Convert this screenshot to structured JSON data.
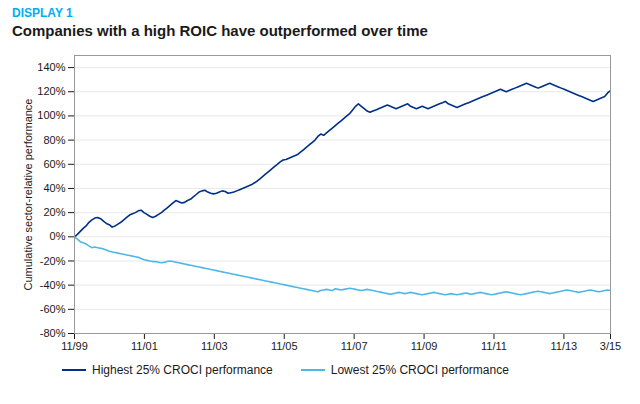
{
  "chart_data": {
    "type": "line",
    "title": "Companies with a high ROIC have outperformed over time",
    "annotations": [
      {
        "text": "DISPLAY 1",
        "color": "#00AEEF"
      }
    ],
    "y_label": "Cumulative sector-relative performance",
    "grid": "y",
    "legend": "bottom",
    "xlim": [
      0,
      184
    ],
    "xticks": [
      {
        "value": 0,
        "label": "11/99"
      },
      {
        "value": 24,
        "label": "11/01"
      },
      {
        "value": 48,
        "label": "11/03"
      },
      {
        "value": 72,
        "label": "11/05"
      },
      {
        "value": 96,
        "label": "11/07"
      },
      {
        "value": 120,
        "label": "11/09"
      },
      {
        "value": 144,
        "label": "11/11"
      },
      {
        "value": 168,
        "label": "11/13"
      },
      {
        "value": 184,
        "label": "3/15"
      }
    ],
    "ylim": [
      -80,
      150
    ],
    "yticks": [
      {
        "value": -80,
        "label": "-80%"
      },
      {
        "value": -60,
        "label": "-60%"
      },
      {
        "value": -40,
        "label": "-40%"
      },
      {
        "value": -20,
        "label": "-20%"
      },
      {
        "value": 0,
        "label": "0%"
      },
      {
        "value": 20,
        "label": "20%"
      },
      {
        "value": 40,
        "label": "40%"
      },
      {
        "value": 60,
        "label": "60%"
      },
      {
        "value": 80,
        "label": "80%"
      },
      {
        "value": 100,
        "label": "100%"
      },
      {
        "value": 120,
        "label": "120%"
      },
      {
        "value": 140,
        "label": "140%"
      }
    ],
    "x": [
      0,
      0.995,
      1.989,
      2.984,
      3.978,
      4.973,
      5.968,
      6.962,
      7.957,
      8.951,
      9.946,
      10.941,
      11.935,
      12.93,
      13.924,
      14.919,
      15.914,
      16.908,
      17.903,
      18.897,
      19.892,
      20.886,
      21.881,
      22.876,
      23.87,
      24.865,
      25.859,
      26.854,
      27.849,
      28.843,
      29.838,
      30.832,
      31.827,
      32.822,
      33.816,
      34.811,
      35.805,
      36.8,
      37.795,
      38.789,
      39.784,
      40.778,
      41.773,
      42.768,
      43.762,
      44.757,
      45.751,
      46.746,
      47.741,
      48.735,
      49.73,
      50.724,
      51.719,
      52.714,
      53.708,
      54.703,
      55.697,
      56.692,
      57.686,
      58.681,
      59.676,
      60.67,
      61.665,
      62.659,
      63.654,
      64.649,
      65.643,
      66.638,
      67.632,
      68.627,
      69.622,
      70.616,
      71.611,
      72.605,
      73.6,
      74.595,
      75.589,
      76.584,
      77.578,
      78.573,
      79.568,
      80.562,
      81.557,
      82.551,
      83.546,
      84.541,
      85.535,
      86.53,
      87.524,
      88.519,
      89.514,
      90.508,
      91.503,
      92.497,
      93.492,
      94.486,
      95.481,
      96.476,
      97.47,
      98.465,
      99.459,
      100.454,
      101.449,
      102.443,
      103.438,
      104.432,
      105.427,
      106.422,
      107.416,
      108.411,
      109.405,
      110.4,
      111.395,
      112.389,
      113.384,
      114.378,
      115.373,
      116.368,
      117.362,
      118.357,
      119.351,
      120.346,
      121.341,
      122.335,
      123.33,
      124.324,
      125.319,
      126.314,
      127.308,
      128.303,
      129.297,
      130.292,
      131.286,
      132.281,
      133.276,
      134.27,
      135.265,
      136.259,
      137.254,
      138.249,
      139.243,
      140.238,
      141.232,
      142.227,
      143.222,
      144.216,
      145.211,
      146.205,
      147.2,
      148.195,
      149.189,
      150.184,
      151.178,
      152.173,
      153.168,
      154.162,
      155.157,
      156.151,
      157.146,
      158.141,
      159.135,
      160.13,
      161.124,
      162.119,
      163.114,
      164.108,
      165.103,
      166.097,
      167.092,
      168.086,
      169.081,
      170.076,
      171.07,
      172.065,
      173.059,
      174.054,
      175.049,
      176.043,
      177.038,
      178.032,
      179.027,
      180.022,
      181.016,
      182.011,
      183.005,
      184
    ],
    "series": [
      {
        "name": "Highest 25% CROCI performance",
        "color": "#003087",
        "values": [
          0.0,
          2.0,
          4.5,
          7.0,
          9.0,
          12.0,
          14.0,
          15.5,
          16.0,
          15.0,
          13.0,
          11.0,
          10.0,
          8.0,
          9.0,
          10.5,
          12.0,
          14.0,
          16.0,
          18.0,
          19.0,
          20.0,
          21.5,
          22.0,
          20.0,
          18.5,
          17.0,
          16.0,
          17.0,
          18.5,
          20.0,
          22.0,
          24.0,
          26.0,
          28.0,
          30.0,
          29.0,
          28.0,
          28.5,
          30.0,
          31.0,
          33.0,
          35.0,
          37.0,
          38.0,
          38.5,
          37.0,
          36.0,
          35.5,
          36.0,
          37.0,
          38.0,
          37.5,
          36.0,
          36.5,
          37.0,
          38.0,
          39.0,
          40.0,
          41.0,
          42.0,
          43.0,
          44.5,
          46.0,
          48.0,
          50.0,
          52.0,
          54.0,
          56.0,
          58.0,
          60.0,
          62.0,
          63.5,
          64.0,
          65.0,
          66.0,
          67.0,
          68.0,
          70.0,
          72.0,
          74.0,
          76.0,
          78.0,
          80.0,
          83.0,
          85.0,
          84.0,
          86.0,
          88.0,
          90.0,
          92.0,
          94.0,
          96.0,
          98.0,
          100.0,
          102.0,
          105.0,
          108.0,
          110.0,
          108.0,
          106.0,
          104.0,
          103.0,
          104.0,
          105.0,
          106.0,
          107.0,
          108.0,
          109.0,
          108.0,
          107.0,
          106.0,
          107.0,
          108.0,
          109.0,
          110.0,
          108.0,
          107.0,
          106.0,
          107.0,
          108.0,
          107.0,
          106.0,
          107.0,
          108.0,
          109.0,
          110.0,
          111.0,
          112.0,
          110.0,
          109.0,
          108.0,
          107.0,
          108.0,
          109.0,
          110.0,
          111.0,
          112.0,
          113.0,
          114.0,
          115.0,
          116.0,
          117.0,
          118.0,
          119.0,
          120.0,
          121.0,
          122.0,
          121.0,
          120.0,
          121.0,
          122.0,
          123.0,
          124.0,
          125.0,
          126.0,
          127.0,
          126.0,
          125.0,
          124.0,
          123.0,
          124.0,
          125.0,
          126.0,
          127.0,
          126.0,
          125.0,
          124.0,
          123.0,
          122.0,
          121.0,
          120.0,
          119.0,
          118.0,
          117.0,
          116.0,
          115.0,
          114.0,
          113.0,
          112.0,
          113.0,
          114.0,
          115.0,
          116.0,
          119.0,
          121.0
        ]
      },
      {
        "name": "Lowest 25% CROCI performance",
        "color": "#4db8e8",
        "values": [
          0.0,
          -2.0,
          -4.0,
          -5.0,
          -6.0,
          -7.5,
          -9.0,
          -8.5,
          -9.0,
          -9.5,
          -10.0,
          -11.0,
          -12.0,
          -12.5,
          -13.0,
          -13.5,
          -14.0,
          -14.5,
          -15.0,
          -15.5,
          -16.0,
          -16.5,
          -17.0,
          -18.0,
          -19.0,
          -19.5,
          -20.0,
          -20.5,
          -20.5,
          -21.0,
          -21.5,
          -21.0,
          -20.5,
          -20.0,
          -20.5,
          -21.0,
          -21.5,
          -22.0,
          -22.5,
          -23.0,
          -23.5,
          -24.0,
          -24.5,
          -25.0,
          -25.5,
          -26.0,
          -26.5,
          -27.0,
          -27.5,
          -28.0,
          -28.5,
          -29.0,
          -29.5,
          -30.0,
          -30.5,
          -31.0,
          -31.5,
          -32.0,
          -32.5,
          -33.0,
          -33.5,
          -34.0,
          -34.5,
          -35.0,
          -35.5,
          -36.0,
          -36.5,
          -37.0,
          -37.5,
          -38.0,
          -38.5,
          -39.0,
          -39.5,
          -40.0,
          -40.5,
          -41.0,
          -41.5,
          -42.0,
          -42.5,
          -43.0,
          -43.5,
          -44.0,
          -44.5,
          -45.0,
          -45.5,
          -44.5,
          -44.0,
          -43.5,
          -44.0,
          -44.5,
          -43.0,
          -43.5,
          -44.0,
          -43.5,
          -43.0,
          -42.5,
          -43.0,
          -43.5,
          -44.0,
          -44.5,
          -44.0,
          -43.5,
          -44.0,
          -44.5,
          -45.0,
          -45.5,
          -46.0,
          -46.5,
          -47.0,
          -47.5,
          -47.0,
          -46.5,
          -46.0,
          -46.5,
          -47.0,
          -46.5,
          -46.0,
          -46.5,
          -47.0,
          -47.5,
          -48.0,
          -47.5,
          -47.0,
          -46.5,
          -46.0,
          -46.5,
          -47.0,
          -47.5,
          -48.0,
          -47.5,
          -47.0,
          -47.5,
          -48.0,
          -47.5,
          -47.0,
          -46.5,
          -47.0,
          -47.5,
          -47.0,
          -46.5,
          -46.0,
          -46.5,
          -47.0,
          -47.5,
          -48.0,
          -47.5,
          -47.0,
          -46.5,
          -46.0,
          -45.5,
          -46.0,
          -46.5,
          -47.0,
          -47.5,
          -48.0,
          -47.5,
          -47.0,
          -46.5,
          -46.0,
          -45.5,
          -45.0,
          -45.5,
          -46.0,
          -46.5,
          -47.0,
          -46.5,
          -46.0,
          -45.5,
          -45.0,
          -44.5,
          -44.0,
          -44.5,
          -45.0,
          -45.5,
          -46.0,
          -45.5,
          -45.0,
          -44.5,
          -44.0,
          -44.5,
          -45.0,
          -45.5,
          -45.0,
          -44.5,
          -44.0,
          -44.5
        ]
      }
    ]
  }
}
